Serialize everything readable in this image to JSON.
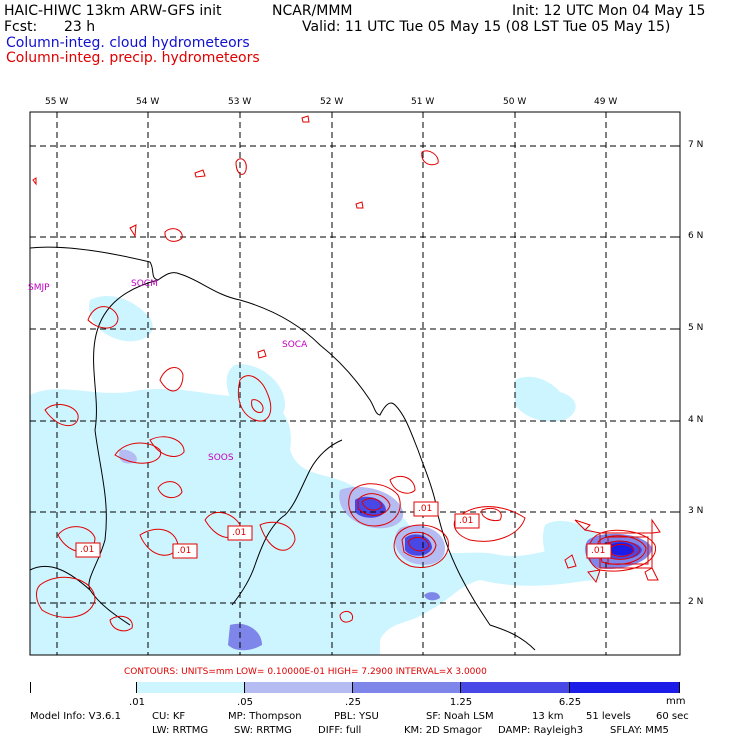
{
  "header": {
    "model_line": "HAIC-HIWC 13km ARW-GFS init",
    "agency": "NCAR/MMM",
    "init": "Init: 12 UTC Mon 04 May 15",
    "fcst_label": "Fcst:",
    "fcst_value": "23 h",
    "valid": "Valid: 11 UTC Tue 05 May 15 (08 LST Tue 05 May 15)",
    "field1": "Column-integ. cloud hydrometeors",
    "field2": "Column-integ. precip. hydrometeors"
  },
  "colors": {
    "field1": "#1010d0",
    "field2": "#e00000",
    "contour": "#e00000",
    "station": "#c000c0",
    "shade_levels": [
      "#ffffff",
      "#cdf5ff",
      "#b4bcf2",
      "#7f86ea",
      "#4848e6",
      "#1c1ce8"
    ]
  },
  "map": {
    "lon_labels": [
      "55 W",
      "54 W",
      "53 W",
      "52 W",
      "51 W",
      "50 W",
      "49 W"
    ],
    "lat_labels": [
      "7 N",
      "6 N",
      "5 N",
      "4 N",
      "3 N",
      "2 N"
    ],
    "stations": [
      "SMJP",
      "SOCM",
      "SOCA",
      "SOOS"
    ],
    "contour_labels": [
      ".01",
      ".01",
      ".01",
      ".01",
      ".01",
      ".01"
    ]
  },
  "contour_info": {
    "text": "CONTOURS:  UNITS=mm   LOW= 0.10000E-01   HIGH=  7.2900      INTERVAL=X  3.0000"
  },
  "legend": {
    "ticks": [
      ".01",
      ".05",
      ".25",
      "1.25",
      "6.25"
    ],
    "unit": "mm"
  },
  "footer": {
    "line1": [
      "Model Info: V3.6.1",
      "CU: KF",
      "MP: Thompson",
      "PBL: YSU",
      "SF: Noah LSM",
      "13 km",
      "51 levels",
      "60 sec"
    ],
    "line2": [
      "LW: RRTMG",
      "SW: RRTMG",
      "DIFF: full",
      "KM: 2D Smagor",
      "DAMP: Rayleigh3",
      "SFLAY: MM5"
    ]
  }
}
